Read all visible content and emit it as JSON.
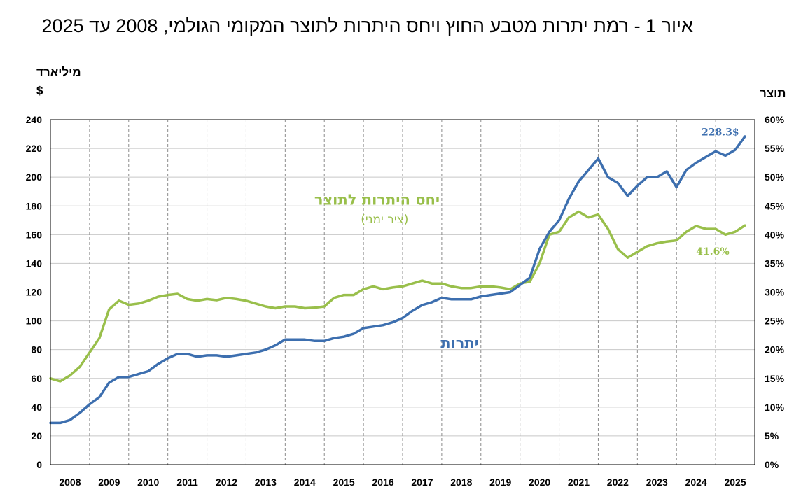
{
  "title": "איור 1 - רמת יתרות מטבע החוץ ויחס היתרות לתוצר המקומי הגולמי, 2008 עד 2025",
  "left_unit_line1": "מיליארד",
  "left_unit_line2": "$",
  "right_unit": "תוצר",
  "colors": {
    "reserves": "#3D6FAF",
    "ratio": "#99BF4B"
  },
  "chart_data": {
    "type": "line",
    "title": "איור 1 - רמת יתרות מטבע החוץ ויחס היתרות לתוצר המקומי הגולמי, 2008 עד 2025",
    "x_categories": [
      "2008",
      "2009",
      "2010",
      "2011",
      "2012",
      "2013",
      "2014",
      "2015",
      "2016",
      "2017",
      "2018",
      "2019",
      "2020",
      "2021",
      "2022",
      "2023",
      "2024",
      "2025"
    ],
    "y_left": {
      "label": "מיליארד $",
      "ylim": [
        0,
        240
      ],
      "ticks": [
        "0",
        "20",
        "40",
        "60",
        "80",
        "100",
        "120",
        "140",
        "160",
        "180",
        "200",
        "220",
        "240"
      ]
    },
    "y_right": {
      "label": "תוצר",
      "ylim": [
        0,
        60
      ],
      "ticks": [
        "0%",
        "5%",
        "10%",
        "15%",
        "20%",
        "25%",
        "30%",
        "35%",
        "40%",
        "45%",
        "50%",
        "55%",
        "60%"
      ]
    },
    "grid": {
      "horizontal": true,
      "vertical_dashed_year_separators": true
    },
    "series": [
      {
        "name": "יתרות",
        "axis": "left",
        "end_label": "228.3$",
        "points": [
          [
            2008.0,
            29
          ],
          [
            2008.25,
            29
          ],
          [
            2008.5,
            31
          ],
          [
            2008.75,
            36
          ],
          [
            2009.0,
            42
          ],
          [
            2009.25,
            47
          ],
          [
            2009.5,
            57
          ],
          [
            2009.75,
            61
          ],
          [
            2010.0,
            61
          ],
          [
            2010.25,
            63
          ],
          [
            2010.5,
            65
          ],
          [
            2010.75,
            70
          ],
          [
            2011.0,
            74
          ],
          [
            2011.25,
            77
          ],
          [
            2011.5,
            77
          ],
          [
            2011.75,
            75
          ],
          [
            2012.0,
            76
          ],
          [
            2012.25,
            76
          ],
          [
            2012.5,
            75
          ],
          [
            2012.75,
            76
          ],
          [
            2013.0,
            77
          ],
          [
            2013.25,
            78
          ],
          [
            2013.5,
            80
          ],
          [
            2013.75,
            83
          ],
          [
            2014.0,
            87
          ],
          [
            2014.25,
            87
          ],
          [
            2014.5,
            87
          ],
          [
            2014.75,
            86
          ],
          [
            2015.0,
            86
          ],
          [
            2015.25,
            88
          ],
          [
            2015.5,
            89
          ],
          [
            2015.75,
            91
          ],
          [
            2016.0,
            95
          ],
          [
            2016.25,
            96
          ],
          [
            2016.5,
            97
          ],
          [
            2016.75,
            99
          ],
          [
            2017.0,
            102
          ],
          [
            2017.25,
            107
          ],
          [
            2017.5,
            111
          ],
          [
            2017.75,
            113
          ],
          [
            2018.0,
            116
          ],
          [
            2018.25,
            115
          ],
          [
            2018.5,
            115
          ],
          [
            2018.75,
            115
          ],
          [
            2019.0,
            117
          ],
          [
            2019.25,
            118
          ],
          [
            2019.5,
            119
          ],
          [
            2019.75,
            120
          ],
          [
            2020.0,
            125
          ],
          [
            2020.25,
            130
          ],
          [
            2020.5,
            150
          ],
          [
            2020.75,
            162
          ],
          [
            2021.0,
            170
          ],
          [
            2021.25,
            185
          ],
          [
            2021.5,
            197
          ],
          [
            2021.75,
            205
          ],
          [
            2022.0,
            213
          ],
          [
            2022.25,
            200
          ],
          [
            2022.5,
            196
          ],
          [
            2022.75,
            187
          ],
          [
            2023.0,
            194
          ],
          [
            2023.25,
            200
          ],
          [
            2023.5,
            200
          ],
          [
            2023.75,
            204
          ],
          [
            2024.0,
            193
          ],
          [
            2024.25,
            205
          ],
          [
            2024.5,
            210
          ],
          [
            2024.75,
            214
          ],
          [
            2025.0,
            218
          ],
          [
            2025.25,
            215
          ],
          [
            2025.5,
            219
          ],
          [
            2025.75,
            228.3
          ]
        ]
      },
      {
        "name": "יחס היתרות לתוצר",
        "axis": "right",
        "sub_label": "(ציר ימני)",
        "end_label": "41.6%",
        "points": [
          [
            2008.0,
            15
          ],
          [
            2008.25,
            14.5
          ],
          [
            2008.5,
            15.5
          ],
          [
            2008.75,
            17
          ],
          [
            2009.0,
            19.5
          ],
          [
            2009.25,
            22
          ],
          [
            2009.5,
            27
          ],
          [
            2009.75,
            28.5
          ],
          [
            2010.0,
            27.8
          ],
          [
            2010.25,
            28
          ],
          [
            2010.5,
            28.5
          ],
          [
            2010.75,
            29.2
          ],
          [
            2011.0,
            29.5
          ],
          [
            2011.25,
            29.7
          ],
          [
            2011.5,
            28.8
          ],
          [
            2011.75,
            28.5
          ],
          [
            2012.0,
            28.8
          ],
          [
            2012.25,
            28.6
          ],
          [
            2012.5,
            29
          ],
          [
            2012.75,
            28.8
          ],
          [
            2013.0,
            28.5
          ],
          [
            2013.25,
            28
          ],
          [
            2013.5,
            27.5
          ],
          [
            2013.75,
            27.2
          ],
          [
            2014.0,
            27.5
          ],
          [
            2014.25,
            27.5
          ],
          [
            2014.5,
            27.2
          ],
          [
            2014.75,
            27.3
          ],
          [
            2015.0,
            27.5
          ],
          [
            2015.25,
            29
          ],
          [
            2015.5,
            29.5
          ],
          [
            2015.75,
            29.5
          ],
          [
            2016.0,
            30.5
          ],
          [
            2016.25,
            31
          ],
          [
            2016.5,
            30.5
          ],
          [
            2016.75,
            30.8
          ],
          [
            2017.0,
            31
          ],
          [
            2017.25,
            31.5
          ],
          [
            2017.5,
            32
          ],
          [
            2017.75,
            31.5
          ],
          [
            2018.0,
            31.5
          ],
          [
            2018.25,
            31
          ],
          [
            2018.5,
            30.7
          ],
          [
            2018.75,
            30.7
          ],
          [
            2019.0,
            31
          ],
          [
            2019.25,
            31
          ],
          [
            2019.5,
            30.8
          ],
          [
            2019.75,
            30.5
          ],
          [
            2020.0,
            31.5
          ],
          [
            2020.25,
            31.8
          ],
          [
            2020.5,
            35
          ],
          [
            2020.75,
            40
          ],
          [
            2021.0,
            40.5
          ],
          [
            2021.25,
            43
          ],
          [
            2021.5,
            44
          ],
          [
            2021.75,
            43
          ],
          [
            2022.0,
            43.5
          ],
          [
            2022.25,
            41
          ],
          [
            2022.5,
            37.5
          ],
          [
            2022.75,
            36
          ],
          [
            2023.0,
            37
          ],
          [
            2023.25,
            38
          ],
          [
            2023.5,
            38.5
          ],
          [
            2023.75,
            38.8
          ],
          [
            2024.0,
            39
          ],
          [
            2024.25,
            40.5
          ],
          [
            2024.5,
            41.5
          ],
          [
            2024.75,
            41
          ],
          [
            2025.0,
            41
          ],
          [
            2025.25,
            40
          ],
          [
            2025.5,
            40.5
          ],
          [
            2025.75,
            41.6
          ]
        ]
      }
    ]
  }
}
